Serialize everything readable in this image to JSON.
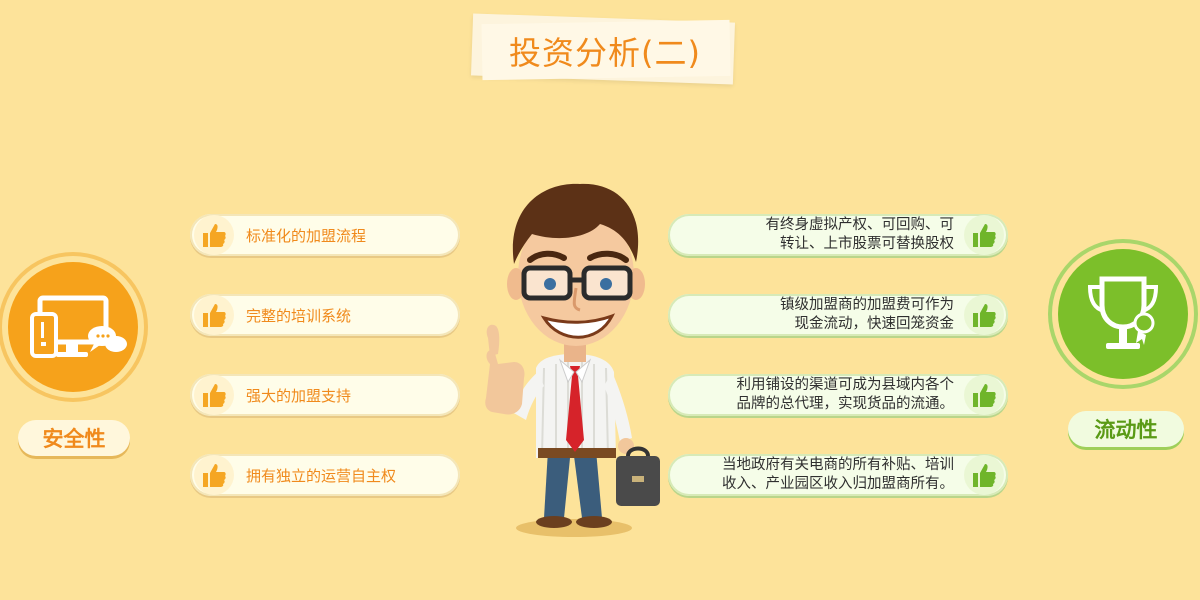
{
  "title": "投资分析(二)",
  "left_panel": {
    "badge_label": "安全性",
    "icon": "devices-chat-icon",
    "items": [
      {
        "text": "标准化的加盟流程"
      },
      {
        "text": "完整的培训系统"
      },
      {
        "text": "强大的加盟支持"
      },
      {
        "text": "拥有独立的运营自主权"
      }
    ]
  },
  "right_panel": {
    "badge_label": "流动性",
    "icon": "trophy-award-icon",
    "items": [
      {
        "line1": "有终身虚拟产权、可回购、可",
        "line2": "转让、上市股票可替换股权"
      },
      {
        "line1": "镇级加盟商的加盟费可作为",
        "line2": "现金流动，快速回笼资金"
      },
      {
        "line1": "利用铺设的渠道可成为县域内各个",
        "line2": "品牌的总代理，实现货品的流通。"
      },
      {
        "line1": "当地政府有关电商的所有补贴、培训",
        "line2": "收入、产业园区收入归加盟商所有。"
      }
    ]
  },
  "colors": {
    "background": "#fde39a",
    "accent_orange": "#f08a1c",
    "accent_green": "#7cbf2a"
  }
}
